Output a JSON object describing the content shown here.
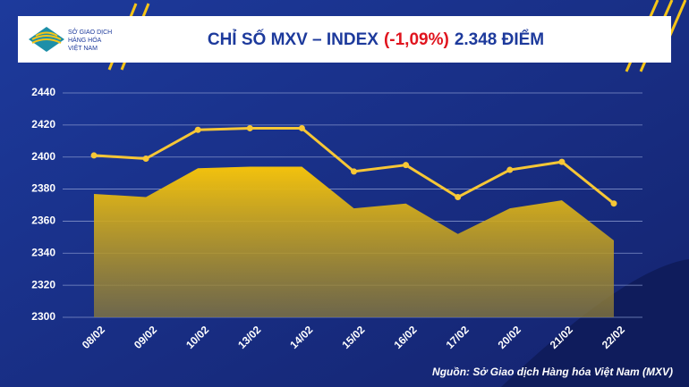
{
  "header": {
    "logo_lines": [
      "SỞ GIAO DỊCH",
      "HÀNG HÓA",
      "VIỆT NAM"
    ]
  },
  "chart_data": {
    "type": "line",
    "title": [
      "CHỈ SỐ MXV – INDEX",
      "(-1,09%)",
      "2.348 ĐIỂM"
    ],
    "categories": [
      "08/02",
      "09/02",
      "10/02",
      "13/02",
      "14/02",
      "15/02",
      "16/02",
      "17/02",
      "20/02",
      "21/02",
      "22/02"
    ],
    "series": [
      {
        "kind": "area",
        "color": "#e9b40c",
        "values": [
          2377,
          2375,
          2393,
          2394,
          2394,
          2368,
          2371,
          2352,
          2368,
          2373,
          2348
        ]
      },
      {
        "kind": "line",
        "color": "#f7c736",
        "values": [
          2401,
          2399,
          2417,
          2418,
          2418,
          2391,
          2395,
          2375,
          2392,
          2397,
          2371
        ]
      }
    ],
    "ylim": [
      2300,
      2440
    ],
    "yticks": [
      2300,
      2320,
      2340,
      2360,
      2380,
      2400,
      2420,
      2440
    ],
    "grid": true,
    "source": "Nguồn: Sở Giao dịch Hàng hóa Việt Nam (MXV)"
  }
}
